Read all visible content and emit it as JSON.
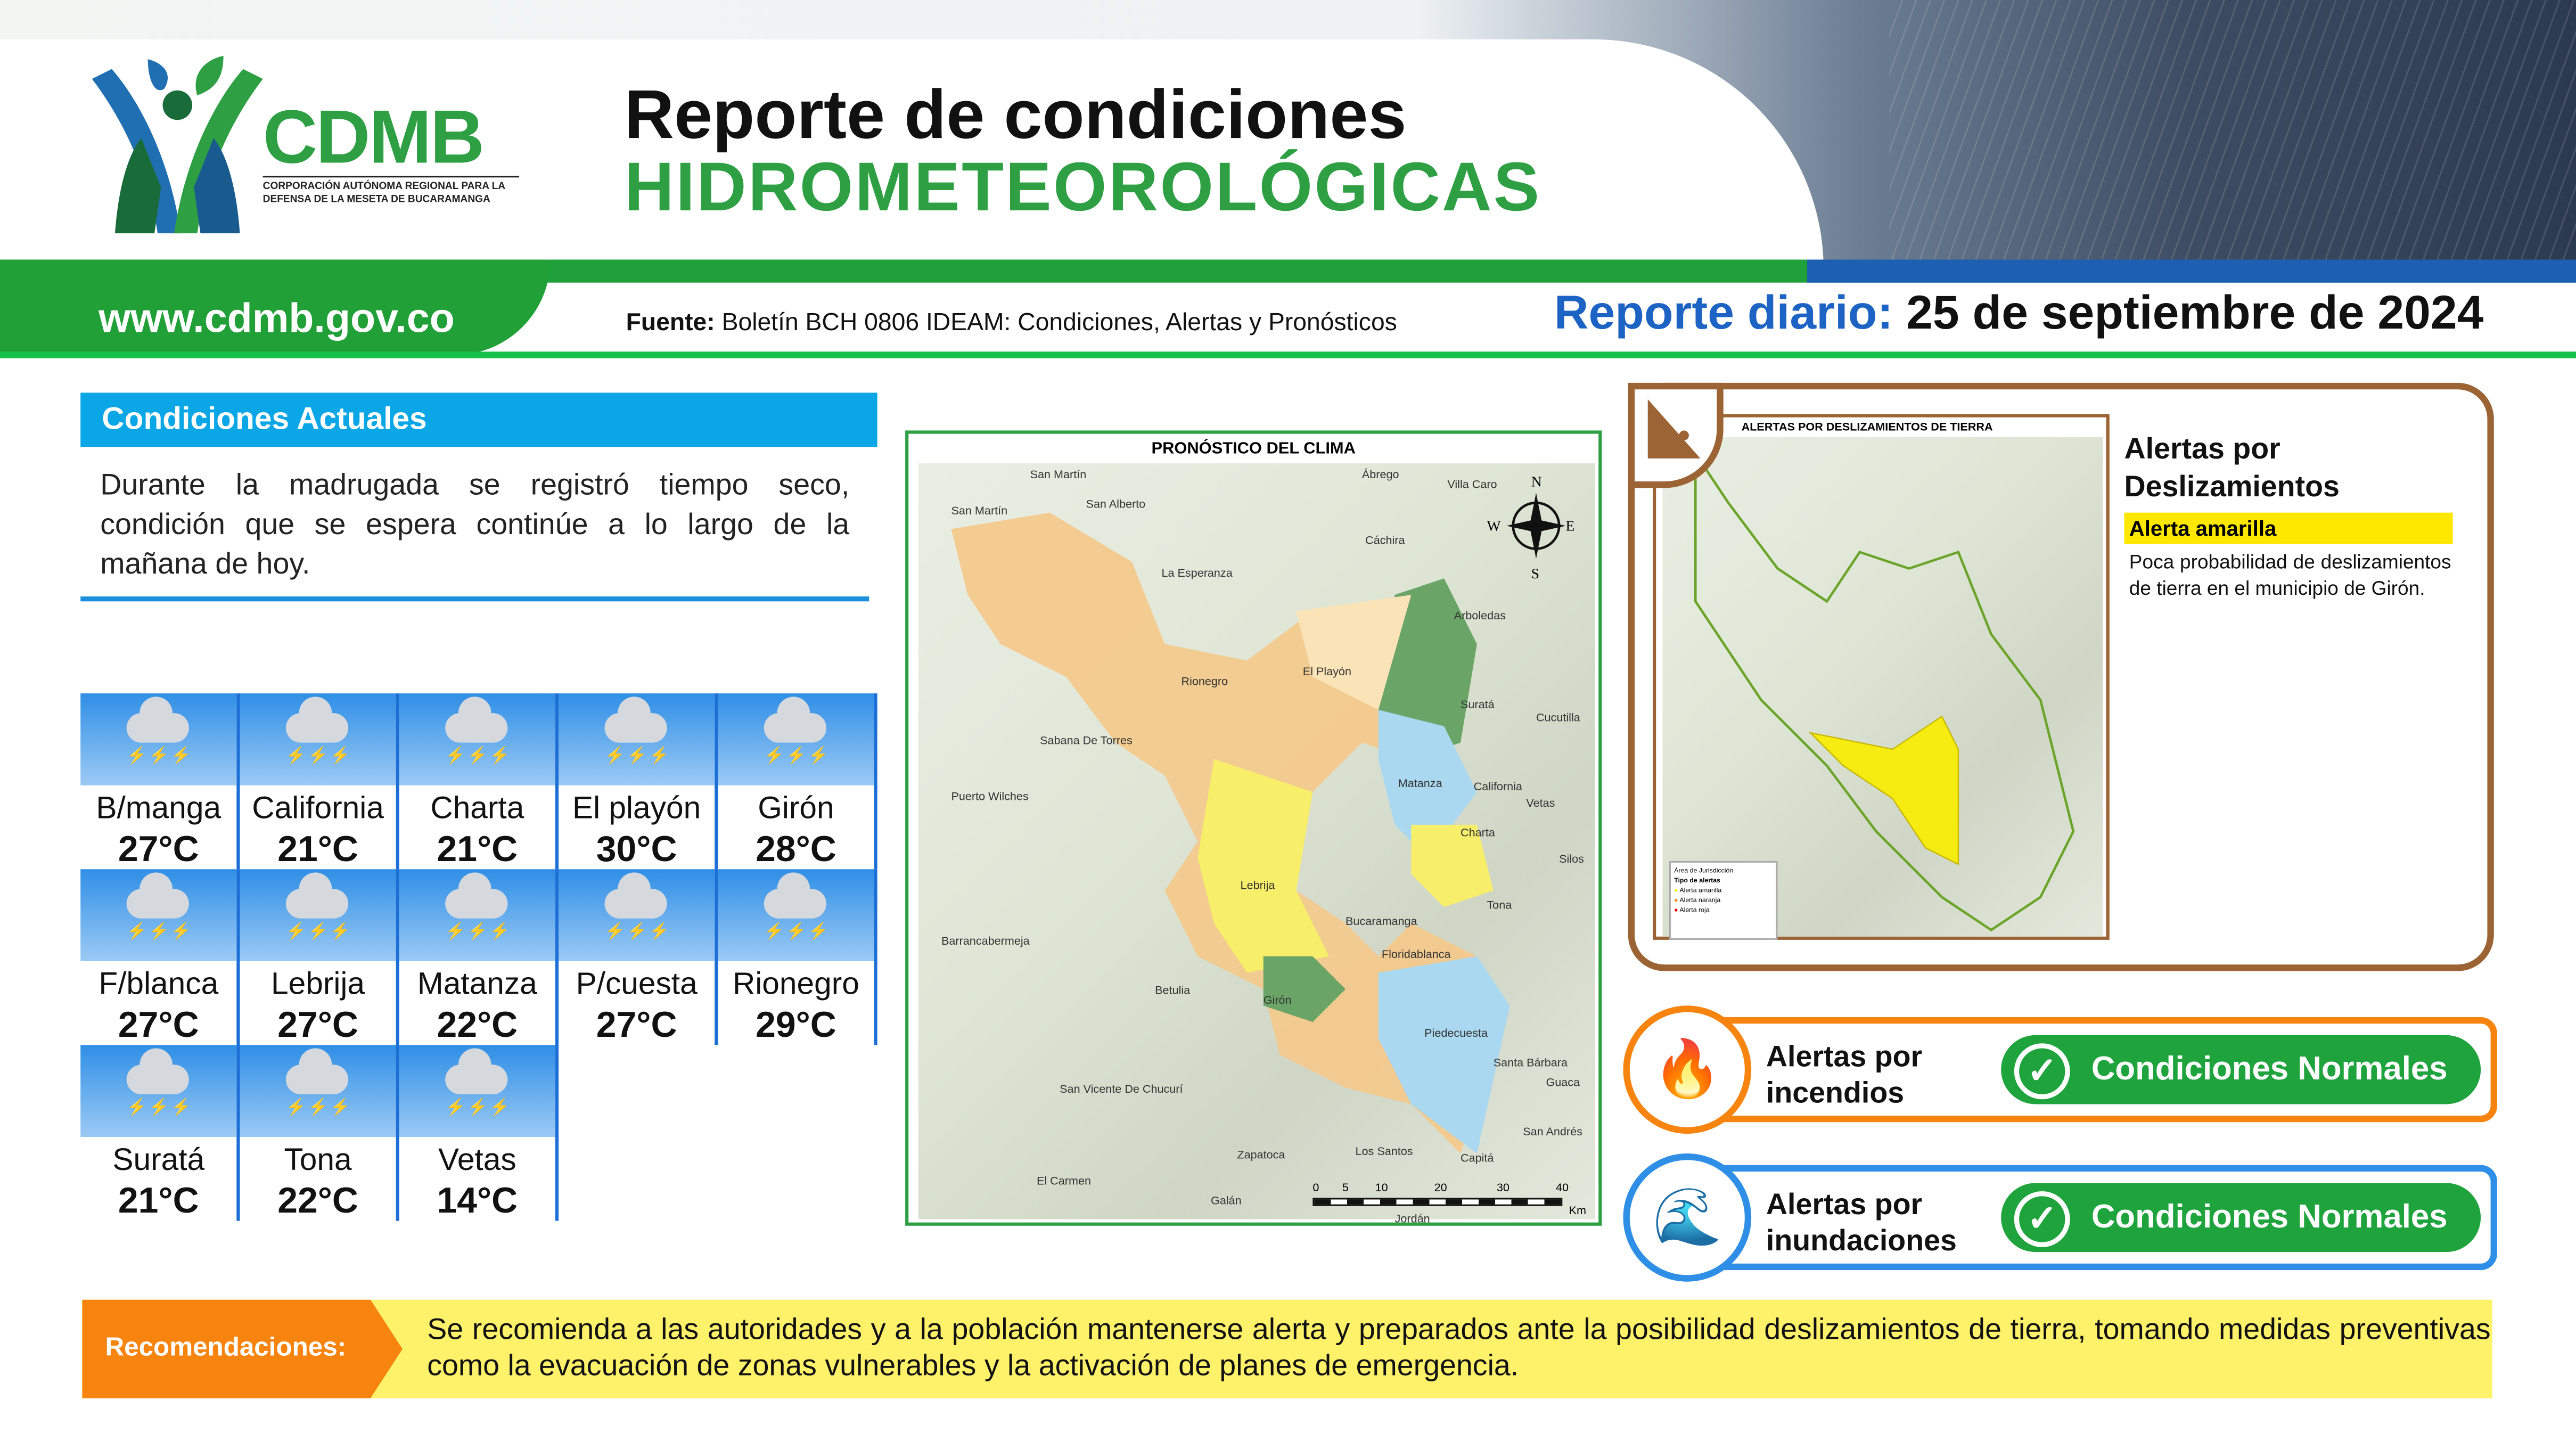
{
  "header": {
    "logo_text": "CDMB",
    "logo_subtitle": "CORPORACIÓN AUTÓNOMA REGIONAL PARA LA DEFENSA DE LA MESETA DE BUCARAMANGA",
    "title_line1": "Reporte de condiciones",
    "title_line2": "HIDROMETEOROLÓGICAS",
    "url": "www.cdmb.gov.co",
    "source_label": "Fuente:",
    "source_text": "Boletín BCH 0806 IDEAM: Condiciones, Alertas y Pronósticos",
    "report_label": "Reporte diario:",
    "report_date": "25 de septiembre de 2024"
  },
  "conditions": {
    "heading": "Condiciones Actuales",
    "text": "Durante la madrugada se registró tiempo seco, condición que se espera continúe a lo largo de la mañana de hoy.",
    "weather_icon": "cloud-lightning-rain-icon",
    "stations": [
      {
        "name": "B/manga",
        "temp": "27°C"
      },
      {
        "name": "California",
        "temp": "21°C"
      },
      {
        "name": "Charta",
        "temp": "21°C"
      },
      {
        "name": "El playón",
        "temp": "30°C"
      },
      {
        "name": "Girón",
        "temp": "28°C"
      },
      {
        "name": "F/blanca",
        "temp": "27°C"
      },
      {
        "name": "Lebrija",
        "temp": "27°C"
      },
      {
        "name": "Matanza",
        "temp": "22°C"
      },
      {
        "name": "P/cuesta",
        "temp": "27°C"
      },
      {
        "name": "Rionegro",
        "temp": "29°C"
      },
      {
        "name": "Suratá",
        "temp": "21°C"
      },
      {
        "name": "Tona",
        "temp": "22°C"
      },
      {
        "name": "Vetas",
        "temp": "14°C"
      }
    ]
  },
  "forecast_map": {
    "title": "PRONÓSTICO DEL CLIMA",
    "places": [
      "San Martín",
      "San Martín",
      "San Alberto",
      "Ábrego",
      "Villa Caro",
      "Cáchira",
      "La Esperanza",
      "Rionegro",
      "El Playón",
      "Arboledas",
      "Suratá",
      "Cucutilla",
      "Sabana De Torres",
      "Matanza",
      "California",
      "Vetas",
      "Puerto Wilches",
      "Charta",
      "Silos",
      "Lebrija",
      "Tona",
      "Bucaramanga",
      "Floridablanca",
      "Barrancabermeja",
      "Betulia",
      "Girón",
      "Piedecuesta",
      "Santa Bárbara",
      "Guaca",
      "San Vicente De Chucurí",
      "Zapatoca",
      "Los Santos",
      "El Carmen",
      "Galán",
      "Jordán",
      "San Andrés",
      "Capitá"
    ],
    "compass": [
      "N",
      "S",
      "E",
      "W"
    ],
    "scale": [
      "0",
      "5",
      "10",
      "20",
      "30",
      "40",
      "Km"
    ]
  },
  "landslide": {
    "map_title": "ALERTAS POR DESLIZAMIENTOS DE TIERRA",
    "legend": [
      "Área de Jurisdicción",
      "Tipo de alertas",
      "Alerta amarilla",
      "Alerta naranja",
      "Alerta roja"
    ],
    "title": "Alertas por Deslizamientos",
    "badge": "Alerta amarilla",
    "badge_color": "#ffe800",
    "description": "Poca probabilidad de deslizamientos de tierra en el municipio de Girón."
  },
  "fire": {
    "label": "Alertas por incendios",
    "status": "Condiciones Normales",
    "color": "#f6840f",
    "icon": "fire-icon"
  },
  "flood": {
    "label": "Alertas por inundaciones",
    "status": "Condiciones Normales",
    "color": "#2f8fe6",
    "icon": "flood-icon"
  },
  "recommendations": {
    "label": "Recomendaciones:",
    "text": "Se recomienda a las autoridades y a la población mantenerse alerta y preparados ante la posibilidad deslizamientos de tierra, tomando medidas preventivas como la evacuación de zonas vulnerables y la activación de planes de emergencia."
  }
}
